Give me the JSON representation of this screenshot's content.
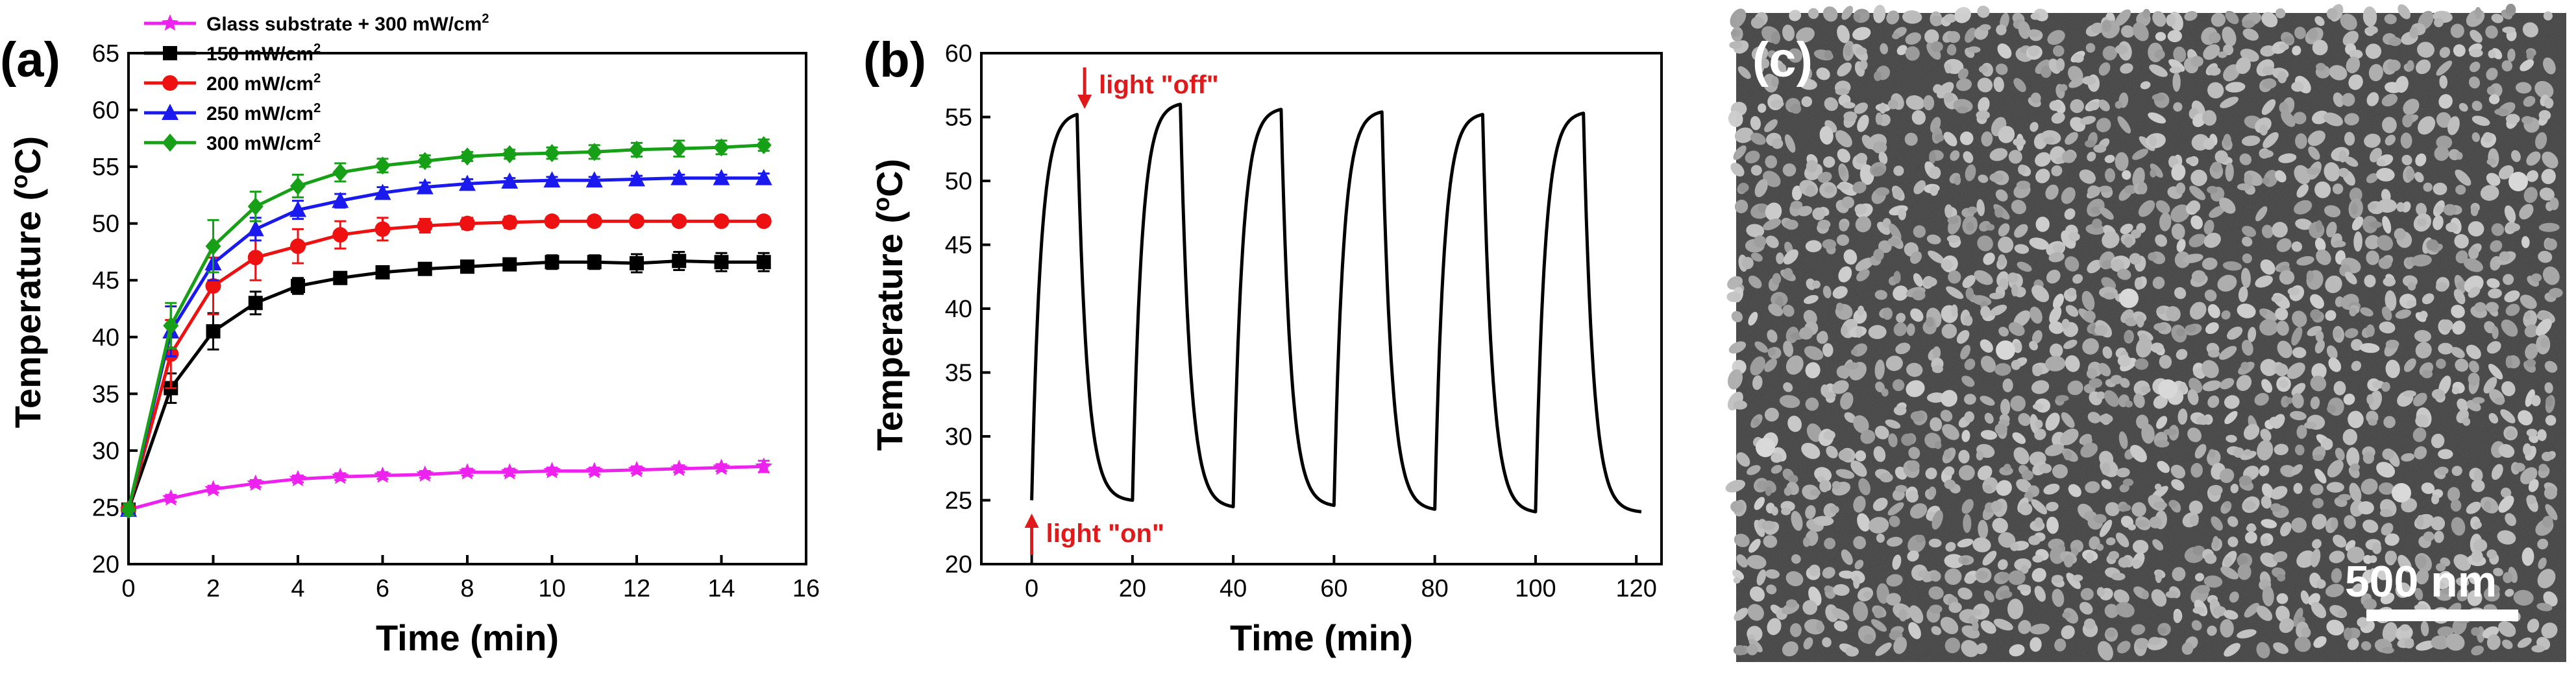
{
  "chart_data": [
    {
      "panel_label": "(a)",
      "type": "line",
      "title": "",
      "xlabel": "Time (min)",
      "ylabel": "Temperature (°C)",
      "ylabel_pre": "Temperature (",
      "ylabel_deg": "o",
      "ylabel_post": "C)",
      "xlim": [
        0,
        16
      ],
      "ylim": [
        20,
        65
      ],
      "xticks": [
        0,
        2,
        4,
        6,
        8,
        10,
        12,
        14,
        16
      ],
      "yticks": [
        20,
        25,
        30,
        35,
        40,
        45,
        50,
        55,
        60,
        65
      ],
      "x": [
        0,
        1,
        2,
        3,
        4,
        5,
        6,
        7,
        8,
        9,
        10,
        11,
        12,
        13,
        14,
        15
      ],
      "legend_position": "top-left",
      "series": [
        {
          "name": "Glass substrate + 300 mW/cm²",
          "label_main": "Glass substrate + 300 mW/cm",
          "label_sup": "2",
          "color": "#ee22ee",
          "marker": "star",
          "values": [
            24.8,
            25.8,
            26.6,
            27.1,
            27.5,
            27.7,
            27.8,
            27.9,
            28.1,
            28.1,
            28.2,
            28.2,
            28.3,
            28.4,
            28.5,
            28.6
          ],
          "errors": [
            0.5,
            0.3,
            0.3,
            0.3,
            0.3,
            0.3,
            0.3,
            0.3,
            0.3,
            0.3,
            0.3,
            0.3,
            0.3,
            0.3,
            0.3,
            0.5
          ]
        },
        {
          "name": "150 mW/cm²",
          "label_main": "150 mW/cm",
          "label_sup": "2",
          "color": "#000000",
          "marker": "square",
          "values": [
            24.8,
            35.5,
            40.5,
            43.0,
            44.5,
            45.2,
            45.7,
            46.0,
            46.2,
            46.4,
            46.6,
            46.6,
            46.5,
            46.7,
            46.6,
            46.6
          ],
          "errors": [
            0.5,
            1.3,
            1.6,
            1.0,
            0.7,
            0.5,
            0.4,
            0.4,
            0.4,
            0.5,
            0.6,
            0.6,
            0.8,
            0.8,
            0.8,
            0.8
          ]
        },
        {
          "name": "200 mW/cm²",
          "label_main": "200 mW/cm",
          "label_sup": "2",
          "color": "#ee1111",
          "marker": "circle",
          "values": [
            24.8,
            38.5,
            44.5,
            47.0,
            48.0,
            49.0,
            49.5,
            49.8,
            50.0,
            50.1,
            50.2,
            50.2,
            50.2,
            50.2,
            50.2,
            50.2
          ],
          "errors": [
            0.5,
            3.0,
            2.5,
            2.0,
            1.5,
            1.2,
            1.0,
            0.6,
            0.5,
            0.5,
            0.4,
            0.4,
            0.3,
            0.3,
            0.3,
            0.3
          ]
        },
        {
          "name": "250 mW/cm²",
          "label_main": "250 mW/cm",
          "label_sup": "2",
          "color": "#1a1aee",
          "marker": "triangle",
          "values": [
            24.8,
            40.5,
            46.5,
            49.5,
            51.2,
            52.0,
            52.7,
            53.2,
            53.5,
            53.7,
            53.8,
            53.8,
            53.9,
            54.0,
            54.0,
            54.0
          ],
          "errors": [
            0.5,
            2.2,
            1.5,
            1.0,
            0.8,
            0.6,
            0.5,
            0.4,
            0.4,
            0.3,
            0.3,
            0.3,
            0.3,
            0.3,
            0.3,
            0.4
          ]
        },
        {
          "name": "300 mW/cm²",
          "label_main": "300 mW/cm",
          "label_sup": "2",
          "color": "#17a017",
          "marker": "diamond",
          "values": [
            24.8,
            41.0,
            48.0,
            51.5,
            53.3,
            54.5,
            55.1,
            55.5,
            55.9,
            56.1,
            56.2,
            56.3,
            56.5,
            56.6,
            56.7,
            56.9
          ],
          "errors": [
            0.5,
            2.0,
            2.3,
            1.3,
            1.0,
            0.8,
            0.6,
            0.5,
            0.4,
            0.4,
            0.5,
            0.6,
            0.6,
            0.7,
            0.6,
            0.5
          ]
        }
      ]
    },
    {
      "panel_label": "(b)",
      "type": "line",
      "title": "",
      "xlabel": "Time (min)",
      "ylabel": "Temperature (°C)",
      "ylabel_pre": "Temperature (",
      "ylabel_deg": "o",
      "ylabel_post": "C)",
      "xlim": [
        -10,
        125
      ],
      "ylim": [
        20,
        60
      ],
      "xticks": [
        0,
        20,
        40,
        60,
        80,
        100,
        120
      ],
      "yticks": [
        20,
        25,
        30,
        35,
        40,
        45,
        50,
        55,
        60
      ],
      "cycles": [
        {
          "on": 0,
          "off": 9,
          "end": 20,
          "peak": 55.2,
          "min": 25.0
        },
        {
          "on": 20,
          "off": 29.5,
          "end": 40,
          "peak": 56.0,
          "min": 24.5
        },
        {
          "on": 40,
          "off": 49.5,
          "end": 60,
          "peak": 55.6,
          "min": 24.6
        },
        {
          "on": 60,
          "off": 69.5,
          "end": 80,
          "peak": 55.4,
          "min": 24.3
        },
        {
          "on": 80,
          "off": 89.5,
          "end": 100,
          "peak": 55.2,
          "min": 24.1
        },
        {
          "on": 100,
          "off": 109.5,
          "end": 121,
          "peak": 55.3,
          "min": 24.1
        }
      ],
      "start_temp": 25.0,
      "annotations": {
        "light_off": "light \"off\"",
        "light_on": "light \"on\""
      },
      "annotation_color": "#e01a1a"
    }
  ],
  "panel_c": {
    "panel_label": "(c)",
    "scale_bar_label": "500 nm"
  }
}
